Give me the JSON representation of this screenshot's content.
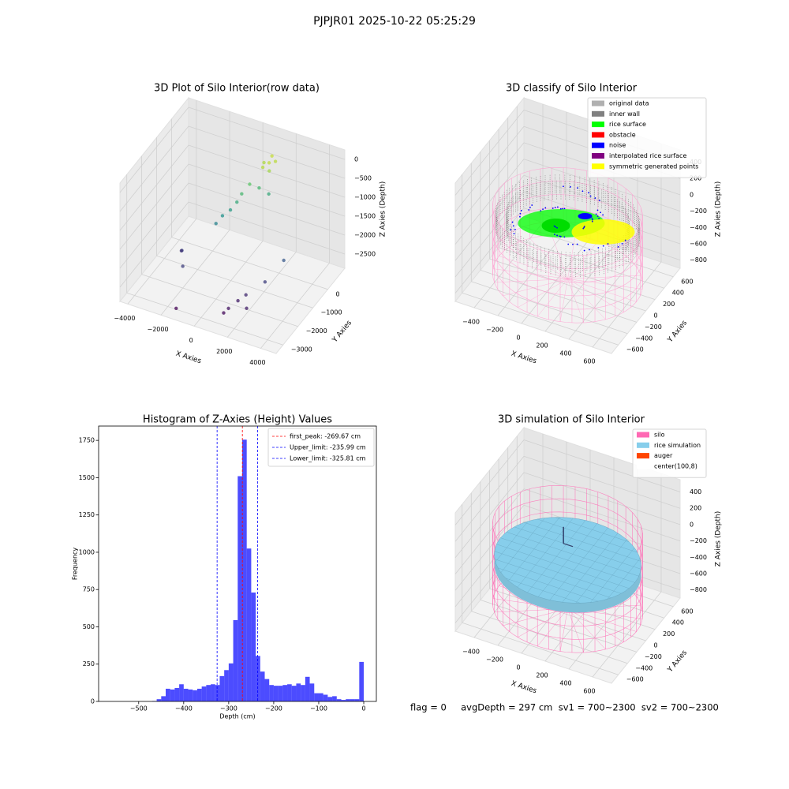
{
  "title": "PJPJR01 2025-10-22 05:25:29",
  "chart_data": [
    {
      "type": "scatter3d",
      "title": "3D Plot of Silo Interior(row data)",
      "xlabel": "X Axies",
      "ylabel": "Y Axies",
      "zlabel": "Z Axies (Depth)",
      "xlim": [
        -4470,
        4930
      ],
      "ylim": [
        -3460,
        1140
      ],
      "zlim": [
        -2875,
        250
      ],
      "xticks": [
        {
          "value": -4000,
          "label": "−4000"
        },
        {
          "value": -2000,
          "label": "−2000"
        },
        0,
        2000,
        4000
      ],
      "yticks": [
        {
          "value": -3000,
          "label": "−3000"
        },
        {
          "value": -2000,
          "label": "−2000"
        },
        {
          "value": -1000,
          "label": "−1000"
        },
        0
      ],
      "zticks": [
        0,
        {
          "value": -500,
          "label": "−500"
        },
        {
          "value": -1000,
          "label": "−1000"
        },
        {
          "value": -1500,
          "label": "−1500"
        },
        {
          "value": -2000,
          "label": "−2000"
        },
        {
          "value": -2500,
          "label": "−2500"
        }
      ],
      "colormap": "viridis",
      "x": [
        1400,
        1200,
        1600,
        1000,
        1500,
        1300,
        500,
        200,
        0,
        -300,
        -600,
        -900,
        800,
        1200,
        -2500,
        -2800,
        -2000,
        1500,
        1800,
        2500,
        3000,
        1200,
        1000,
        2200,
        -1500
      ],
      "y": [
        0,
        -200,
        200,
        100,
        -100,
        300,
        -300,
        -500,
        -600,
        -700,
        -900,
        -1000,
        0,
        200,
        -1500,
        -1200,
        -2000,
        -2200,
        -2000,
        -1500,
        -800,
        -2500,
        -2600,
        -2400,
        -3000
      ],
      "z": [
        -50,
        -100,
        -80,
        -150,
        -200,
        -30,
        -600,
        -800,
        -1000,
        -1200,
        -1300,
        -1500,
        -800,
        -1000,
        -2200,
        -2400,
        -2300,
        -2600,
        -2500,
        -2300,
        -2000,
        -2700,
        -2800,
        -2600,
        -2850
      ]
    },
    {
      "type": "classify3d",
      "title": "3D classify of Silo Interior",
      "xlabel": "X Axies",
      "ylabel": "Y Axies",
      "zlabel": "Z Axies (Depth)",
      "xlim": [
        -560,
        760
      ],
      "ylim": [
        -750,
        750
      ],
      "zlim": [
        -900,
        550
      ],
      "xticks": [
        {
          "value": -400,
          "label": "−400"
        },
        {
          "value": -200,
          "label": "−200"
        },
        0,
        200,
        400,
        600
      ],
      "yticks": [
        {
          "value": -600,
          "label": "−600"
        },
        {
          "value": -400,
          "label": "−400"
        },
        {
          "value": -200,
          "label": "−200"
        },
        0,
        200,
        400,
        600
      ],
      "zticks": [
        {
          "value": -800,
          "label": "−800"
        },
        {
          "value": -600,
          "label": "−600"
        },
        {
          "value": -400,
          "label": "−400"
        },
        {
          "value": -200,
          "label": "−200"
        },
        0,
        200,
        400
      ],
      "legend": [
        {
          "name": "original data",
          "color": "#b0b0b0"
        },
        {
          "name": "inner wall",
          "color": "#808080"
        },
        {
          "name": "rice surface",
          "color": "#00ff00"
        },
        {
          "name": "obstacle",
          "color": "#ff0000"
        },
        {
          "name": "noise",
          "color": "#0000ff"
        },
        {
          "name": "interpolated rice surface",
          "color": "#800080"
        },
        {
          "name": "symmetric generated points",
          "color": "#ffff00"
        }
      ],
      "legend_position": "upper right"
    },
    {
      "type": "histogram",
      "title": "Histogram of Z-Axies (Height) Values",
      "xlabel": "Depth (cm)",
      "ylabel": "Frequency",
      "color": "#0000ff",
      "alpha": 0.7,
      "xlim": [
        -589,
        28
      ],
      "ylim": [
        0,
        1846
      ],
      "xticks": [
        {
          "value": -500,
          "label": "−500"
        },
        {
          "value": -400,
          "label": "−400"
        },
        {
          "value": -300,
          "label": "−300"
        },
        {
          "value": -200,
          "label": "−200"
        },
        {
          "value": -100,
          "label": "−100"
        },
        0
      ],
      "yticks": [
        0,
        250,
        500,
        750,
        1000,
        1250,
        1500,
        1750
      ],
      "bins": [
        -470,
        -460,
        -450,
        -440,
        -430,
        -420,
        -410,
        -400,
        -390,
        -380,
        -370,
        -360,
        -350,
        -340,
        -330,
        -320,
        -310,
        -300,
        -290,
        -280,
        -270,
        -260,
        -250,
        -240,
        -230,
        -220,
        -210,
        -200,
        -190,
        -180,
        -170,
        -160,
        -150,
        -140,
        -130,
        -120,
        -110,
        -100,
        -90,
        -80,
        -70,
        -60,
        -50,
        -40,
        -30,
        -20,
        -10,
        0
      ],
      "values": [
        3,
        15,
        35,
        85,
        80,
        90,
        115,
        85,
        80,
        75,
        85,
        100,
        110,
        115,
        110,
        170,
        210,
        255,
        545,
        1510,
        1755,
        1025,
        730,
        305,
        200,
        150,
        110,
        105,
        105,
        110,
        115,
        105,
        120,
        110,
        165,
        120,
        55,
        55,
        45,
        30,
        35,
        15,
        10,
        15,
        15,
        15,
        265
      ],
      "vlines": [
        {
          "name": "first_peak: -269.67 cm",
          "value": -269.67,
          "color": "#ff0000"
        },
        {
          "name": "Upper_limit: -235.99 cm",
          "value": -235.99,
          "color": "#0000ff"
        },
        {
          "name": "Lower_limit: -325.81 cm",
          "value": -325.81,
          "color": "#0000ff"
        }
      ],
      "legend_position": "upper right"
    },
    {
      "type": "simulation3d",
      "title": "3D simulation of Silo Interior",
      "xlabel": "X Axies",
      "ylabel": "Y Axies",
      "zlabel": "Z Axies (Depth)",
      "xlim": [
        -560,
        760
      ],
      "ylim": [
        -750,
        750
      ],
      "zlim": [
        -900,
        550
      ],
      "xticks": [
        {
          "value": -400,
          "label": "−400"
        },
        {
          "value": -200,
          "label": "−200"
        },
        0,
        200,
        400,
        600
      ],
      "yticks": [
        {
          "value": -600,
          "label": "−600"
        },
        {
          "value": -400,
          "label": "−400"
        },
        {
          "value": -200,
          "label": "−200"
        },
        0,
        200,
        400,
        600
      ],
      "zticks": [
        {
          "value": -800,
          "label": "−800"
        },
        {
          "value": -600,
          "label": "−600"
        },
        {
          "value": -400,
          "label": "−400"
        },
        {
          "value": -200,
          "label": "−200"
        },
        0,
        200,
        400
      ],
      "legend": [
        {
          "name": "silo",
          "color": "#ff69b4"
        },
        {
          "name": "rice simulation",
          "color": "#87ceeb"
        },
        {
          "name": "auger",
          "color": "#ff4500"
        },
        {
          "name": "center(100,8)",
          "color": "#ffffff"
        }
      ],
      "legend_position": "upper right",
      "status": "flag = 0     avgDepth = 297 cm  sv1 = 700~2300  sv2 = 700~2300"
    }
  ]
}
